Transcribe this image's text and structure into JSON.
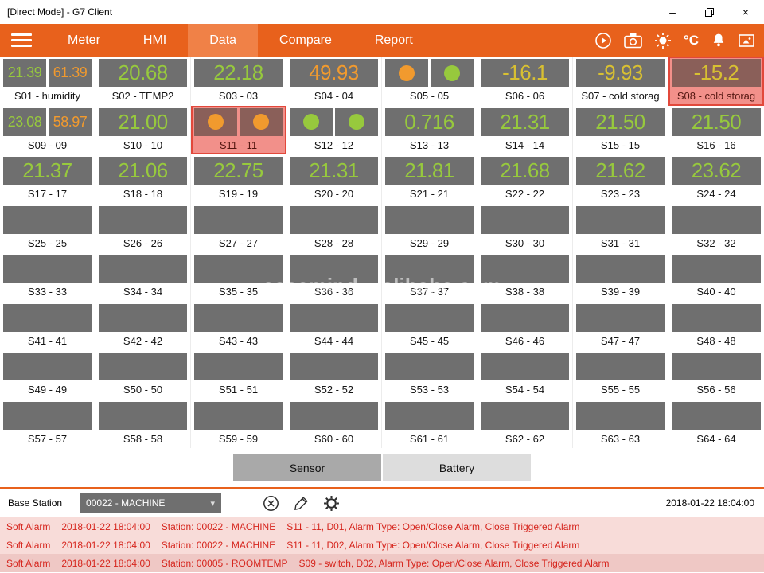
{
  "window": {
    "title": "[Direct Mode] - G7 Client",
    "minimize_glyph": "–",
    "close_glyph": "×"
  },
  "nav": {
    "tabs": [
      {
        "label": "Meter",
        "active": false
      },
      {
        "label": "HMI",
        "active": false
      },
      {
        "label": "Data",
        "active": true
      },
      {
        "label": "Compare",
        "active": false
      },
      {
        "label": "Report",
        "active": false
      }
    ],
    "temp_unit": "°C",
    "icons": [
      "play-circle-icon",
      "camera-icon",
      "brightness-icon",
      "temperature-unit",
      "alarm-bell-icon",
      "export-image-icon"
    ]
  },
  "colors": {
    "green": "#97C93D",
    "orange": "#F19A2E",
    "yellow": "#D8C032",
    "alarm_bg": "#F2908A",
    "alarm_box": "#8A5F59",
    "nav": "#E8611C"
  },
  "sensors": [
    {
      "id": "S01",
      "label": "S01 - humidity",
      "type": "dual",
      "values": [
        {
          "text": "21.39",
          "color": "green"
        },
        {
          "text": "61.39",
          "color": "orange"
        }
      ]
    },
    {
      "id": "S02",
      "label": "S02 - TEMP2",
      "type": "value",
      "value": "20.68",
      "color": "green"
    },
    {
      "id": "S03",
      "label": "S03 - 03",
      "type": "value",
      "value": "22.18",
      "color": "green"
    },
    {
      "id": "S04",
      "label": "S04 - 04",
      "type": "value",
      "value": "49.93",
      "color": "orange"
    },
    {
      "id": "S05",
      "label": "S05 - 05",
      "type": "circles",
      "circles": [
        "orange",
        "green"
      ]
    },
    {
      "id": "S06",
      "label": "S06 - 06",
      "type": "value",
      "value": "-16.1",
      "color": "yellow"
    },
    {
      "id": "S07",
      "label": "S07 - cold storag",
      "type": "value",
      "value": "-9.93",
      "color": "yellow"
    },
    {
      "id": "S08",
      "label": "S08 - cold storag",
      "type": "value",
      "value": "-15.2",
      "color": "yellow",
      "alarm": true
    },
    {
      "id": "S09",
      "label": "S09 - 09",
      "type": "dual",
      "values": [
        {
          "text": "23.08",
          "color": "green"
        },
        {
          "text": "58.97",
          "color": "orange"
        }
      ]
    },
    {
      "id": "S10",
      "label": "S10 - 10",
      "type": "value",
      "value": "21.00",
      "color": "green"
    },
    {
      "id": "S11",
      "label": "S11 - 11",
      "type": "circles",
      "circles": [
        "orange",
        "orange"
      ],
      "alarm": true
    },
    {
      "id": "S12",
      "label": "S12 - 12",
      "type": "circles",
      "circles": [
        "green",
        "green"
      ]
    },
    {
      "id": "S13",
      "label": "S13 - 13",
      "type": "value",
      "value": "0.716",
      "color": "green"
    },
    {
      "id": "S14",
      "label": "S14 - 14",
      "type": "value",
      "value": "21.31",
      "color": "green"
    },
    {
      "id": "S15",
      "label": "S15 - 15",
      "type": "value",
      "value": "21.50",
      "color": "green"
    },
    {
      "id": "S16",
      "label": "S16 - 16",
      "type": "value",
      "value": "21.50",
      "color": "green"
    },
    {
      "id": "S17",
      "label": "S17 - 17",
      "type": "value",
      "value": "21.37",
      "color": "green"
    },
    {
      "id": "S18",
      "label": "S18 - 18",
      "type": "value",
      "value": "21.06",
      "color": "green"
    },
    {
      "id": "S19",
      "label": "S19 - 19",
      "type": "value",
      "value": "22.75",
      "color": "green"
    },
    {
      "id": "S20",
      "label": "S20 - 20",
      "type": "value",
      "value": "21.31",
      "color": "green"
    },
    {
      "id": "S21",
      "label": "S21 - 21",
      "type": "value",
      "value": "21.81",
      "color": "green"
    },
    {
      "id": "S22",
      "label": "S22 - 22",
      "type": "value",
      "value": "21.68",
      "color": "green"
    },
    {
      "id": "S23",
      "label": "S23 - 23",
      "type": "value",
      "value": "21.62",
      "color": "green"
    },
    {
      "id": "S24",
      "label": "S24 - 24",
      "type": "value",
      "value": "23.62",
      "color": "green"
    },
    {
      "id": "S25",
      "label": "S25 - 25",
      "type": "empty"
    },
    {
      "id": "S26",
      "label": "S26 - 26",
      "type": "empty"
    },
    {
      "id": "S27",
      "label": "S27 - 27",
      "type": "empty"
    },
    {
      "id": "S28",
      "label": "S28 - 28",
      "type": "empty"
    },
    {
      "id": "S29",
      "label": "S29 - 29",
      "type": "empty"
    },
    {
      "id": "S30",
      "label": "S30 - 30",
      "type": "empty"
    },
    {
      "id": "S31",
      "label": "S31 - 31",
      "type": "empty"
    },
    {
      "id": "S32",
      "label": "S32 - 32",
      "type": "empty"
    },
    {
      "id": "S33",
      "label": "S33 - 33",
      "type": "empty"
    },
    {
      "id": "S34",
      "label": "S34 - 34",
      "type": "empty"
    },
    {
      "id": "S35",
      "label": "S35 - 35",
      "type": "empty"
    },
    {
      "id": "S36",
      "label": "S36 - 36",
      "type": "empty"
    },
    {
      "id": "S37",
      "label": "S37 - 37",
      "type": "empty"
    },
    {
      "id": "S38",
      "label": "S38 - 38",
      "type": "empty"
    },
    {
      "id": "S39",
      "label": "S39 - 39",
      "type": "empty"
    },
    {
      "id": "S40",
      "label": "S40 - 40",
      "type": "empty"
    },
    {
      "id": "S41",
      "label": "S41 - 41",
      "type": "empty"
    },
    {
      "id": "S42",
      "label": "S42 - 42",
      "type": "empty"
    },
    {
      "id": "S43",
      "label": "S43 - 43",
      "type": "empty"
    },
    {
      "id": "S44",
      "label": "S44 - 44",
      "type": "empty"
    },
    {
      "id": "S45",
      "label": "S45 - 45",
      "type": "empty"
    },
    {
      "id": "S46",
      "label": "S46 - 46",
      "type": "empty"
    },
    {
      "id": "S47",
      "label": "S47 - 47",
      "type": "empty"
    },
    {
      "id": "S48",
      "label": "S48 - 48",
      "type": "empty"
    },
    {
      "id": "S49",
      "label": "S49 - 49",
      "type": "empty"
    },
    {
      "id": "S50",
      "label": "S50 - 50",
      "type": "empty"
    },
    {
      "id": "S51",
      "label": "S51 - 51",
      "type": "empty"
    },
    {
      "id": "S52",
      "label": "S52 - 52",
      "type": "empty"
    },
    {
      "id": "S53",
      "label": "S53 - 53",
      "type": "empty"
    },
    {
      "id": "S54",
      "label": "S54 - 54",
      "type": "empty"
    },
    {
      "id": "S55",
      "label": "S55 - 55",
      "type": "empty"
    },
    {
      "id": "S56",
      "label": "S56 - 56",
      "type": "empty"
    },
    {
      "id": "S57",
      "label": "S57 - 57",
      "type": "empty"
    },
    {
      "id": "S58",
      "label": "S58 - 58",
      "type": "empty"
    },
    {
      "id": "S59",
      "label": "S59 - 59",
      "type": "empty"
    },
    {
      "id": "S60",
      "label": "S60 - 60",
      "type": "empty"
    },
    {
      "id": "S61",
      "label": "S61 - 61",
      "type": "empty"
    },
    {
      "id": "S62",
      "label": "S62 - 62",
      "type": "empty"
    },
    {
      "id": "S63",
      "label": "S63 - 63",
      "type": "empty"
    },
    {
      "id": "S64",
      "label": "S64 - 64",
      "type": "empty"
    }
  ],
  "footer_tabs": [
    {
      "label": "Sensor",
      "active": true
    },
    {
      "label": "Battery",
      "active": false
    }
  ],
  "base_station": {
    "label": "Base Station",
    "selected": "00022 - MACHINE",
    "timestamp": "2018-01-22 18:04:00"
  },
  "alarms": [
    {
      "severity": "Soft Alarm",
      "time": "2018-01-22 18:04:00",
      "station": "Station: 00022 - MACHINE",
      "detail": "S11 - 11, D01, Alarm Type: Open/Close Alarm, Close Triggered Alarm"
    },
    {
      "severity": "Soft Alarm",
      "time": "2018-01-22 18:04:00",
      "station": "Station: 00022 - MACHINE",
      "detail": "S11 - 11, D02, Alarm Type: Open/Close Alarm, Close Triggered Alarm"
    },
    {
      "severity": "Soft Alarm",
      "time": "2018-01-22 18:04:00",
      "station": "Station: 00005 - ROOMTEMP",
      "detail": "S09 - switch, D02, Alarm Type: Open/Close Alarm, Close Triggered Alarm"
    }
  ],
  "watermark": {
    "text_left": "easemind",
    "text_right": "alibaba.com"
  }
}
